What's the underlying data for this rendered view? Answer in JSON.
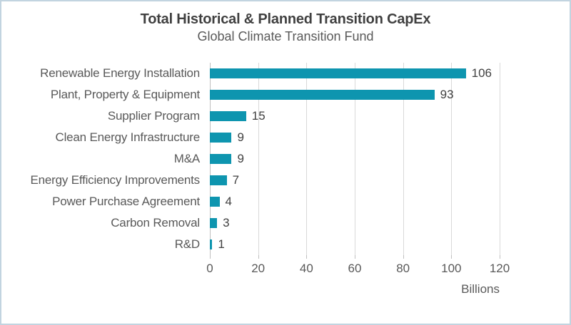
{
  "window": {
    "background_color": "#ffffff",
    "border_color": "#c2d4e0"
  },
  "chart_data": {
    "type": "bar",
    "orientation": "horizontal",
    "title": "Total Historical & Planned Transition CapEx",
    "subtitle": "Global Climate Transition Fund",
    "categories": [
      "Renewable Energy Installation",
      "Plant, Property & Equipment",
      "Supplier Program",
      "Clean Energy Infrastructure",
      "M&A",
      "Energy Efficiency Improvements",
      "Power Purchase Agreement",
      "Carbon Removal",
      "R&D"
    ],
    "values": [
      106,
      93,
      15,
      9,
      9,
      7,
      4,
      3,
      1
    ],
    "data_labels_shown": true,
    "xlabel": "Billions",
    "x_ticks": [
      0,
      20,
      40,
      60,
      80,
      100,
      120
    ],
    "xlim": [
      0,
      120
    ],
    "bar_color": "#0e95af",
    "grid": true,
    "legend": false,
    "title_color": "#404040",
    "text_color": "#595959",
    "value_label_color": "#404040",
    "gridline_color": "#d9d9d9",
    "axis_line_color": "#bfbfbf"
  }
}
